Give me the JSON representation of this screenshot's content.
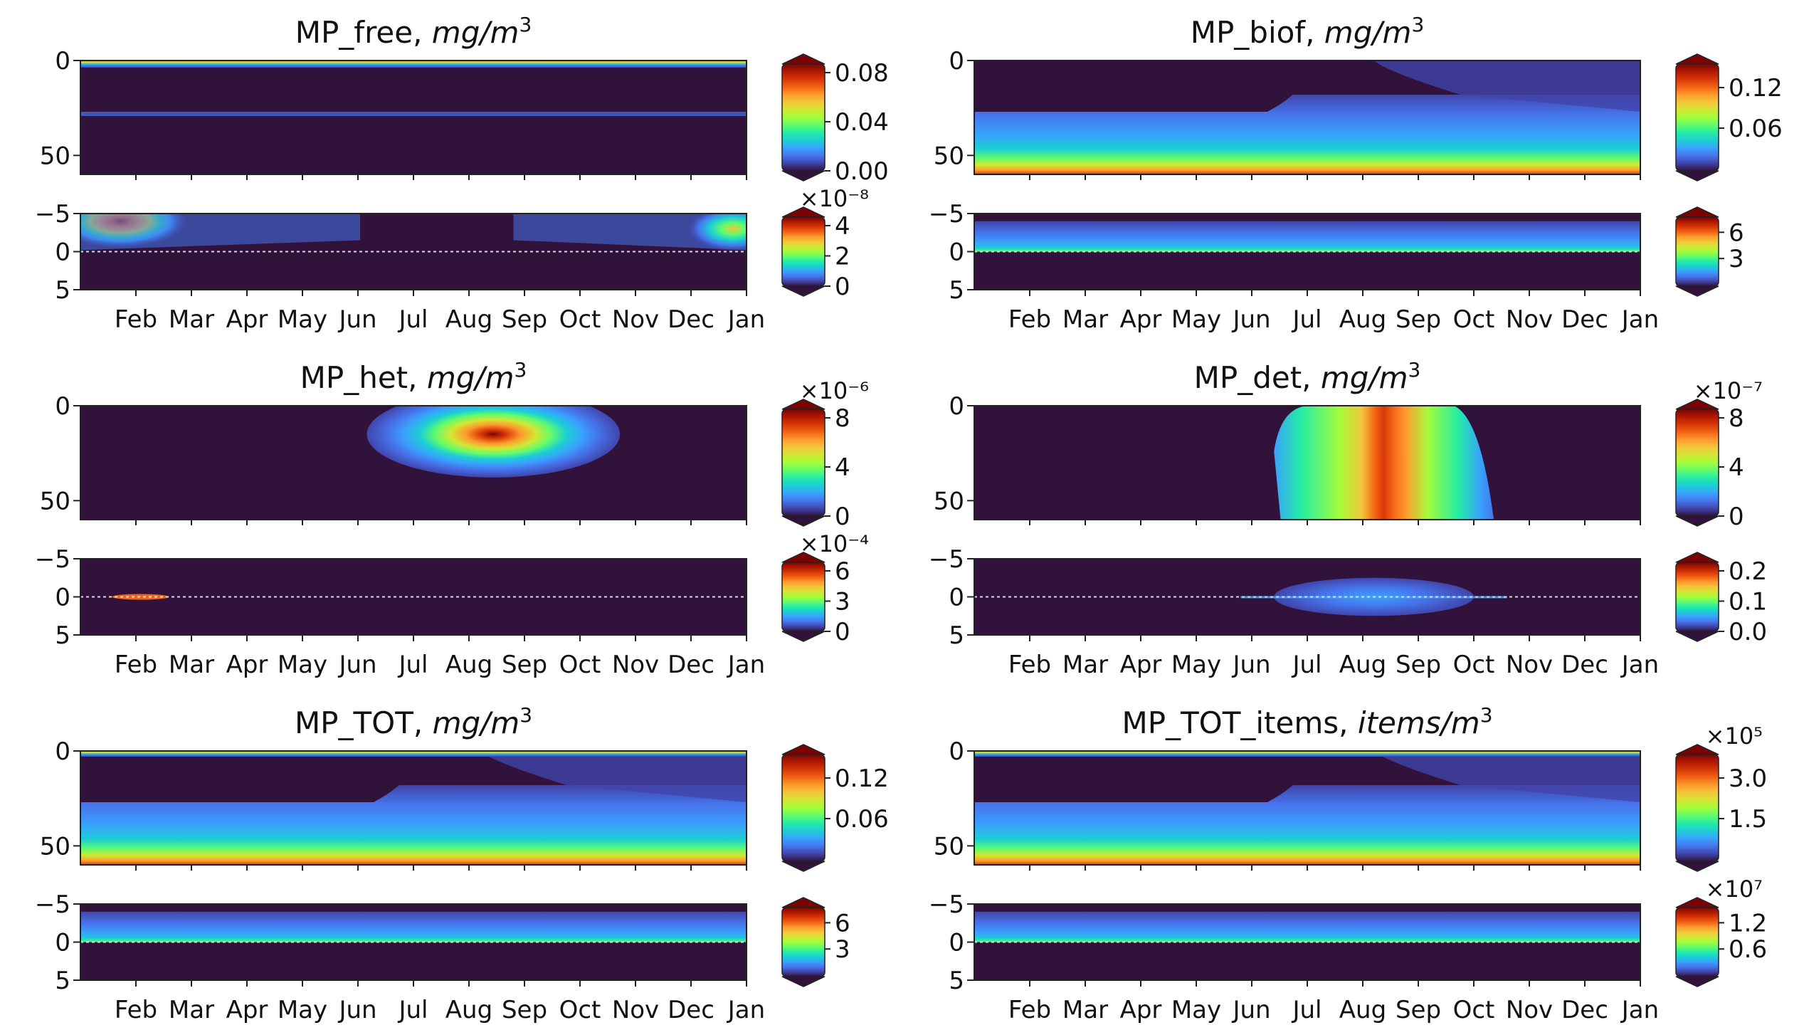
{
  "colormap": [
    "#30123b",
    "#4145ab",
    "#4675ed",
    "#39a2fc",
    "#1bcfd4",
    "#24eca6",
    "#61fc6c",
    "#a4fc3b",
    "#d1e834",
    "#f3c63a",
    "#fe9b2d",
    "#f36315",
    "#d93806",
    "#b11901",
    "#7a0403"
  ],
  "months": [
    "Feb",
    "Mar",
    "Apr",
    "May",
    "Jun",
    "Jul",
    "Aug",
    "Sep",
    "Oct",
    "Nov",
    "Dec",
    "Jan"
  ],
  "chart_data": [
    {
      "type": "heatmap",
      "name": "MP_free",
      "title": "MP_free,",
      "unit": "mg/m",
      "unit_sup": "3",
      "upper": {
        "ylim": [
          0,
          60
        ],
        "yticks": [
          "0",
          "50"
        ],
        "cbar_ticks": [
          "0.08",
          "0.04",
          "0.00"
        ],
        "cbar_mult": "",
        "cbar_range": [
          0,
          0.1
        ]
      },
      "lower": {
        "ylim": [
          -5,
          5
        ],
        "yticks": [
          "−5",
          "0",
          "5"
        ],
        "cbar_ticks": [
          "4",
          "2",
          "0"
        ],
        "cbar_mult": "×10⁻⁸",
        "cbar_range": [
          0,
          5.5
        ]
      }
    },
    {
      "type": "heatmap",
      "name": "MP_biof",
      "title": "MP_biof,",
      "unit": "mg/m",
      "unit_sup": "3",
      "upper": {
        "ylim": [
          0,
          60
        ],
        "yticks": [
          "0",
          "50"
        ],
        "cbar_ticks": [
          "0.12",
          "0.06"
        ],
        "cbar_mult": "",
        "cbar_range": [
          0,
          0.14
        ]
      },
      "lower": {
        "ylim": [
          -5,
          5
        ],
        "yticks": [
          "−5",
          "0",
          "5"
        ],
        "cbar_ticks": [
          "6",
          "3"
        ],
        "cbar_mult": "",
        "cbar_range": [
          0,
          7.5
        ]
      }
    },
    {
      "type": "heatmap",
      "name": "MP_het",
      "title": "MP_het,",
      "unit": "mg/m",
      "unit_sup": "3",
      "upper": {
        "ylim": [
          0,
          60
        ],
        "yticks": [
          "0",
          "50"
        ],
        "cbar_ticks": [
          "8",
          "4",
          "0"
        ],
        "cbar_mult": "×10⁻⁶",
        "cbar_range": [
          0,
          10
        ]
      },
      "lower": {
        "ylim": [
          -5,
          5
        ],
        "yticks": [
          "−5",
          "0",
          "5"
        ],
        "cbar_ticks": [
          "6",
          "3",
          "0"
        ],
        "cbar_mult": "×10⁻⁴",
        "cbar_range": [
          0,
          7.5
        ]
      }
    },
    {
      "type": "heatmap",
      "name": "MP_det",
      "title": "MP_det,",
      "unit": "mg/m",
      "unit_sup": "3",
      "upper": {
        "ylim": [
          0,
          60
        ],
        "yticks": [
          "0",
          "50"
        ],
        "cbar_ticks": [
          "8",
          "4",
          "0"
        ],
        "cbar_mult": "×10⁻⁷",
        "cbar_range": [
          0,
          11
        ]
      },
      "lower": {
        "ylim": [
          -5,
          5
        ],
        "yticks": [
          "−5",
          "0",
          "5"
        ],
        "cbar_ticks": [
          "0.2",
          "0.1",
          "0.0"
        ],
        "cbar_mult": "",
        "cbar_range": [
          0,
          0.25
        ]
      }
    },
    {
      "type": "heatmap",
      "name": "MP_TOT",
      "title": "MP_TOT,",
      "unit": "mg/m",
      "unit_sup": "3",
      "upper": {
        "ylim": [
          0,
          60
        ],
        "yticks": [
          "0",
          "50"
        ],
        "cbar_ticks": [
          "0.12",
          "0.06"
        ],
        "cbar_mult": "",
        "cbar_range": [
          0,
          0.14
        ]
      },
      "lower": {
        "ylim": [
          -5,
          5
        ],
        "yticks": [
          "−5",
          "0",
          "5"
        ],
        "cbar_ticks": [
          "6",
          "3"
        ],
        "cbar_mult": "",
        "cbar_range": [
          0,
          7.5
        ]
      }
    },
    {
      "type": "heatmap",
      "name": "MP_TOT_items",
      "title": "MP_TOT_items,",
      "unit": "items/m",
      "unit_sup": "3",
      "upper": {
        "ylim": [
          0,
          60
        ],
        "yticks": [
          "0",
          "50"
        ],
        "cbar_ticks": [
          "3.0",
          "1.5"
        ],
        "cbar_mult": "×10⁵",
        "cbar_range": [
          0,
          3.3
        ]
      },
      "lower": {
        "ylim": [
          -5,
          5
        ],
        "yticks": [
          "−5",
          "0",
          "5"
        ],
        "cbar_ticks": [
          "1.2",
          "0.6"
        ],
        "cbar_mult": "×10⁷",
        "cbar_range": [
          0,
          1.45
        ]
      }
    }
  ]
}
